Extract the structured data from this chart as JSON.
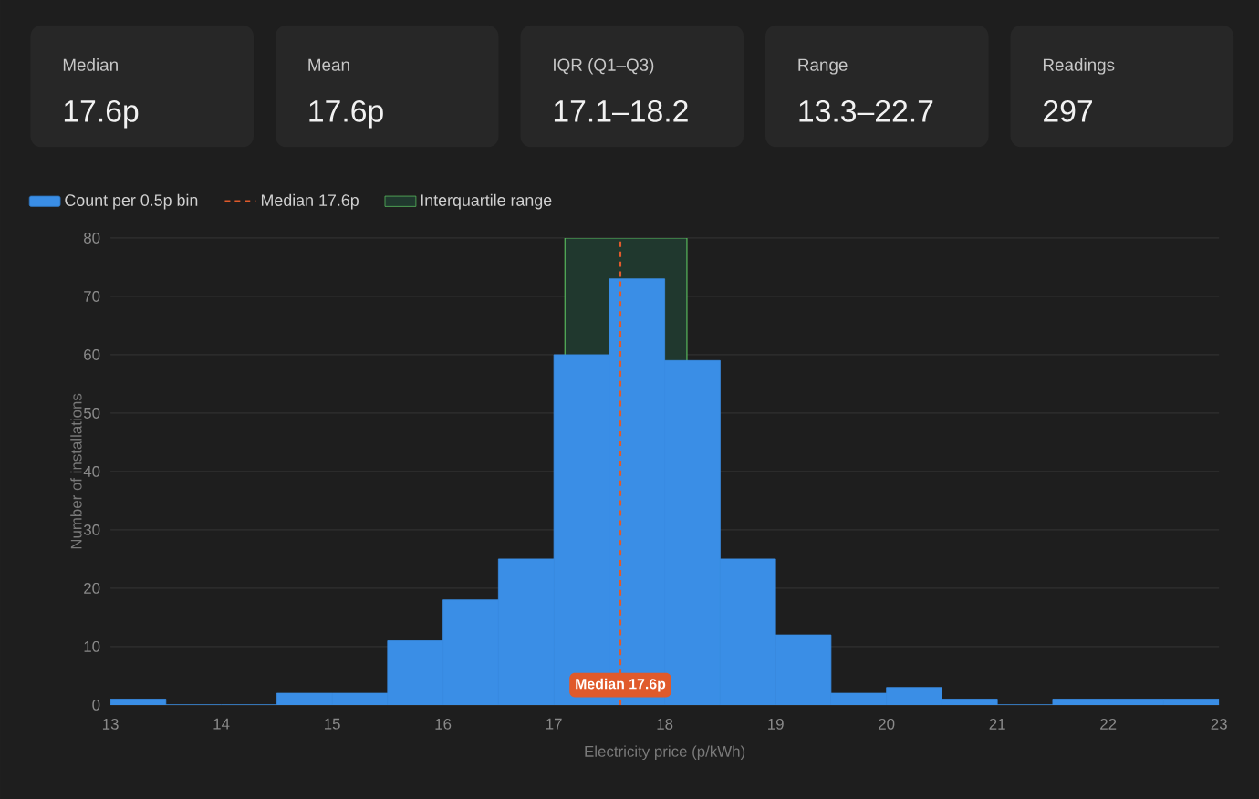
{
  "chart_data": [
    {
      "type": "other",
      "annotations": [
        "Median",
        "17.6p",
        "Mean",
        "17.6p",
        "IQR (Q1–Q3)",
        "17.1–18.2",
        "Range",
        "13.3–22.7",
        "Readings",
        "297"
      ]
    },
    {
      "type": "histogram",
      "xlabel": "Electricity price (p/kWh)",
      "ylabel": "Number of installations",
      "bins": [
        13,
        13.5,
        14,
        14.5,
        15,
        15.5,
        16,
        16.5,
        17,
        17.5,
        18,
        18.5,
        19,
        19.5,
        20,
        20.5,
        21,
        21.5,
        22,
        22.5,
        23
      ],
      "series": [
        {
          "name": "Count per 0.5p bin",
          "color": "#3a8ee6",
          "values": [
            1,
            0,
            0,
            2,
            2,
            11,
            18,
            25,
            60,
            73,
            59,
            25,
            12,
            2,
            3,
            1,
            0,
            1,
            1,
            1
          ]
        }
      ],
      "xlim": [
        13,
        23
      ],
      "ylim": [
        0,
        80
      ],
      "xticks": [
        13,
        14,
        15,
        16,
        17,
        18,
        19,
        20,
        21,
        22,
        23
      ],
      "yticks": [
        0,
        10,
        20,
        30,
        40,
        50,
        60,
        70,
        80
      ],
      "ref_lines": [
        {
          "axis": "x",
          "value": 17.6,
          "label": "Median 17.6p",
          "color": "#e05a2b",
          "line_style": "dashed"
        }
      ],
      "bands": [
        {
          "axis": "x",
          "from": 17.1,
          "to": 18.2,
          "label": "Interquartile range",
          "color": "#20382e"
        }
      ],
      "grid": "y",
      "legend": "top left"
    }
  ]
}
